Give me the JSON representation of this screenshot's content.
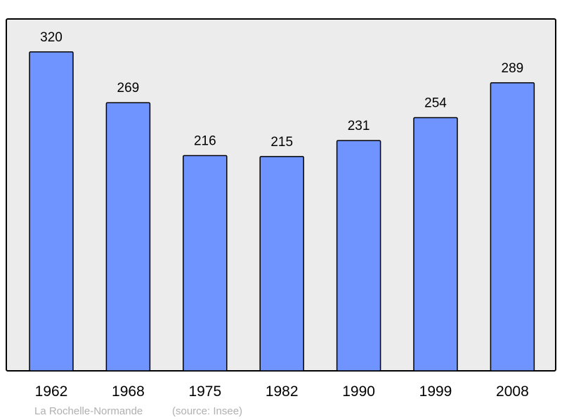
{
  "chart_data": {
    "type": "bar",
    "categories": [
      "1962",
      "1968",
      "1975",
      "1982",
      "1990",
      "1999",
      "2008"
    ],
    "values": [
      320,
      269,
      216,
      215,
      231,
      254,
      289
    ],
    "title": "",
    "xlabel": "",
    "ylabel": "",
    "ylim": [
      0,
      353
    ],
    "grid": false,
    "data_labels": true,
    "bar_color": "#7094ff",
    "background_color": "#ececec",
    "caption": {
      "place": "La Rochelle-Normande",
      "source": "(source: Insee)"
    }
  }
}
